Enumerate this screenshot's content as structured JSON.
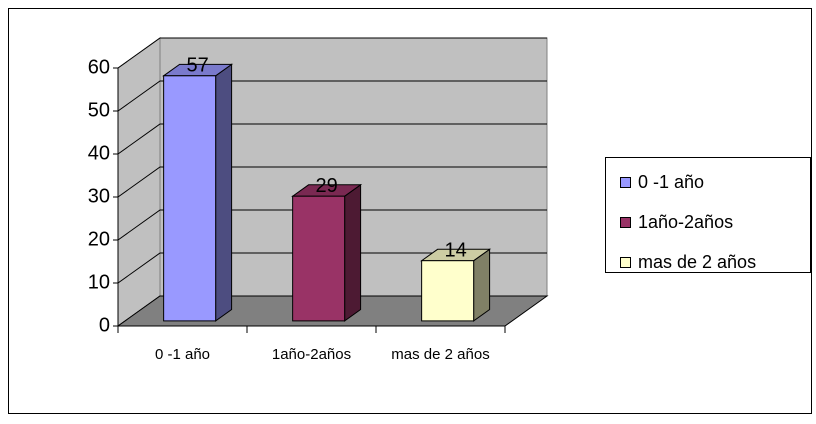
{
  "chart_data": {
    "type": "bar3d",
    "categories": [
      "0 -1 año",
      "1año-2años",
      "mas de 2 años"
    ],
    "values": [
      57,
      29,
      14
    ],
    "colors": [
      "#9999ff",
      "#993366",
      "#ffffcc"
    ],
    "ylim": [
      0,
      60
    ],
    "yticks": [
      0,
      10,
      20,
      30,
      40,
      50,
      60
    ],
    "grid": true,
    "legend": "right"
  }
}
